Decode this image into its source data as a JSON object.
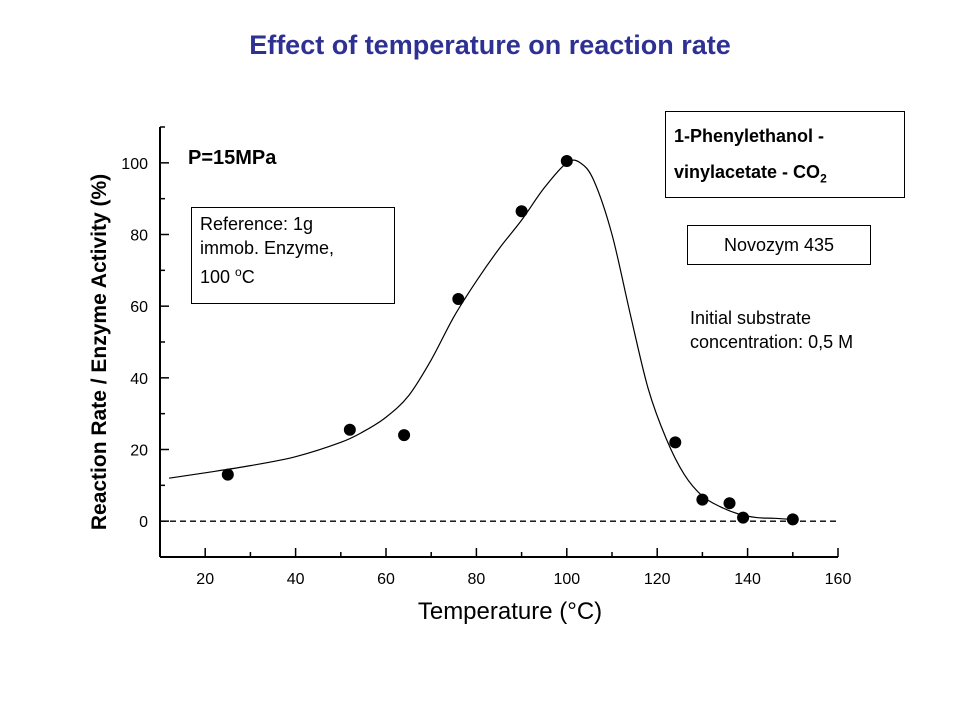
{
  "slide": {
    "title": "Effect of temperature on reaction rate",
    "title_color": "#2e3192"
  },
  "annotations": {
    "reference": {
      "line1": "Reference: 1g",
      "line2": "immob. Enzyme,",
      "line3_prefix": "100 ",
      "line3_sup": "o",
      "line3_suffix": "C"
    },
    "system": {
      "line1": "1-Phenylethanol -",
      "line2_prefix": "vinylacetate - CO",
      "line2_sub": "2"
    },
    "catalyst": "Novozym 435",
    "substrate": {
      "line1": "Initial substrate",
      "line2": "concentration: 0,5 M"
    }
  },
  "chart_data": {
    "type": "scatter",
    "title": "P=15MPa",
    "xlabel": "Temperature (°C)",
    "ylabel": "Reaction Rate / Enzyme Activity (%)",
    "xlim": [
      10,
      160
    ],
    "ylim": [
      -10,
      110
    ],
    "x_ticks": [
      20,
      40,
      60,
      80,
      100,
      120,
      140,
      160
    ],
    "y_ticks": [
      0,
      20,
      40,
      60,
      80,
      100
    ],
    "points": {
      "x": [
        25,
        52,
        64,
        76,
        90,
        100,
        124,
        130,
        136,
        139,
        150
      ],
      "y": [
        13,
        25.5,
        24,
        62,
        86.5,
        100.5,
        22,
        6,
        5,
        1,
        0.5
      ]
    },
    "fit_curve": {
      "x": [
        12,
        20,
        30,
        40,
        50,
        55,
        60,
        65,
        70,
        75,
        80,
        85,
        90,
        95,
        100,
        103,
        106,
        110,
        114,
        118,
        122,
        126,
        130,
        134,
        138,
        142,
        146,
        150
      ],
      "y": [
        12,
        13.5,
        15.5,
        18,
        22,
        25,
        29,
        35,
        45,
        57,
        67,
        76,
        84,
        93,
        100,
        100,
        95,
        80,
        58,
        37,
        23,
        13,
        7,
        4,
        2,
        1,
        0.8,
        0.5
      ]
    },
    "baseline_y": 0,
    "grid": false,
    "legend": "none"
  }
}
